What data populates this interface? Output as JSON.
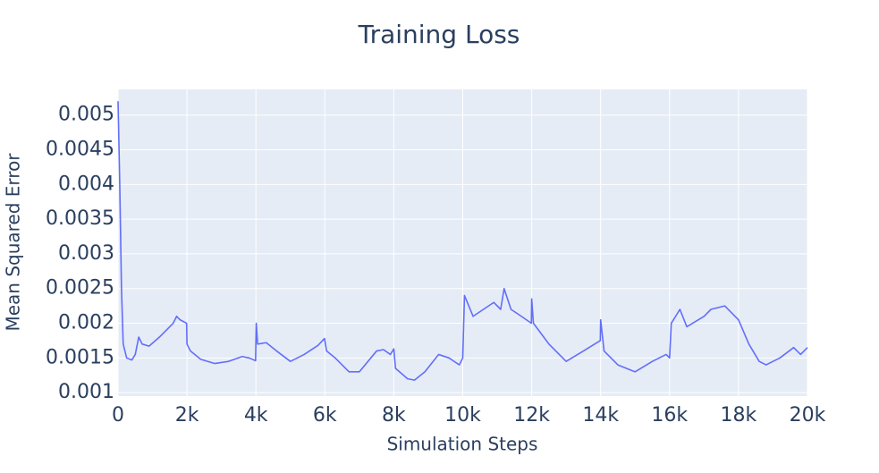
{
  "chart_data": {
    "type": "line",
    "title": "Training Loss",
    "x_label": "Simulation Steps",
    "y_label": "Mean Squared Error",
    "series": [
      {
        "color": "#636efa",
        "x": [
          0,
          50,
          100,
          150,
          250,
          400,
          500,
          600,
          700,
          900,
          1200,
          1400,
          1600,
          1700,
          1800,
          1990,
          2000,
          2100,
          2400,
          2800,
          3200,
          3600,
          3800,
          3990,
          4010,
          4050,
          4300,
          4600,
          5000,
          5400,
          5800,
          5990,
          6050,
          6300,
          6700,
          7000,
          7500,
          7700,
          7900,
          8000,
          8050,
          8400,
          8600,
          8900,
          9300,
          9600,
          9900,
          10000,
          10050,
          10300,
          10600,
          10900,
          11100,
          11200,
          11400,
          11700,
          11990,
          12000,
          12050,
          12500,
          13000,
          13500,
          13990,
          14000,
          14100,
          14500,
          15000,
          15500,
          15900,
          16000,
          16050,
          16300,
          16500,
          17000,
          17200,
          17600,
          17900,
          18000,
          18300,
          18600,
          18800,
          19200,
          19600,
          19800,
          20000
        ],
        "values": [
          0.0052,
          0.004,
          0.0025,
          0.0017,
          0.0015,
          0.00147,
          0.00155,
          0.0018,
          0.0017,
          0.00167,
          0.0018,
          0.0019,
          0.002,
          0.0021,
          0.00205,
          0.002,
          0.0017,
          0.0016,
          0.00148,
          0.00142,
          0.00145,
          0.00152,
          0.0015,
          0.00146,
          0.002,
          0.0017,
          0.00172,
          0.0016,
          0.00145,
          0.00155,
          0.00168,
          0.00178,
          0.0016,
          0.0015,
          0.0013,
          0.0013,
          0.0016,
          0.00162,
          0.00155,
          0.00163,
          0.00135,
          0.0012,
          0.00118,
          0.0013,
          0.00155,
          0.0015,
          0.0014,
          0.0015,
          0.0024,
          0.0021,
          0.0022,
          0.0023,
          0.0022,
          0.0025,
          0.0022,
          0.0021,
          0.002,
          0.00235,
          0.002,
          0.0017,
          0.00145,
          0.0016,
          0.00175,
          0.00205,
          0.0016,
          0.0014,
          0.0013,
          0.00145,
          0.00155,
          0.0015,
          0.002,
          0.0022,
          0.00195,
          0.0021,
          0.0022,
          0.00225,
          0.0021,
          0.00205,
          0.0017,
          0.00145,
          0.0014,
          0.0015,
          0.00165,
          0.00155,
          0.00165
        ]
      }
    ],
    "xlim": [
      0,
      20000
    ],
    "ylim": [
      0.00095,
      0.00537
    ],
    "xticks": [
      0,
      {
        "value": 2000,
        "label": "2k"
      },
      {
        "value": 4000,
        "label": "4k"
      },
      {
        "value": 6000,
        "label": "6k"
      },
      {
        "value": 8000,
        "label": "8k"
      },
      {
        "value": 10000,
        "label": "10k"
      },
      {
        "value": 12000,
        "label": "12k"
      },
      {
        "value": 14000,
        "label": "14k"
      },
      {
        "value": 16000,
        "label": "16k"
      },
      {
        "value": 18000,
        "label": "18k"
      },
      {
        "value": 20000,
        "label": "20k"
      }
    ],
    "yticks": [
      0.001,
      0.0015,
      0.002,
      0.0025,
      0.003,
      0.0035,
      0.004,
      0.0045,
      0.005
    ],
    "grid": true
  }
}
